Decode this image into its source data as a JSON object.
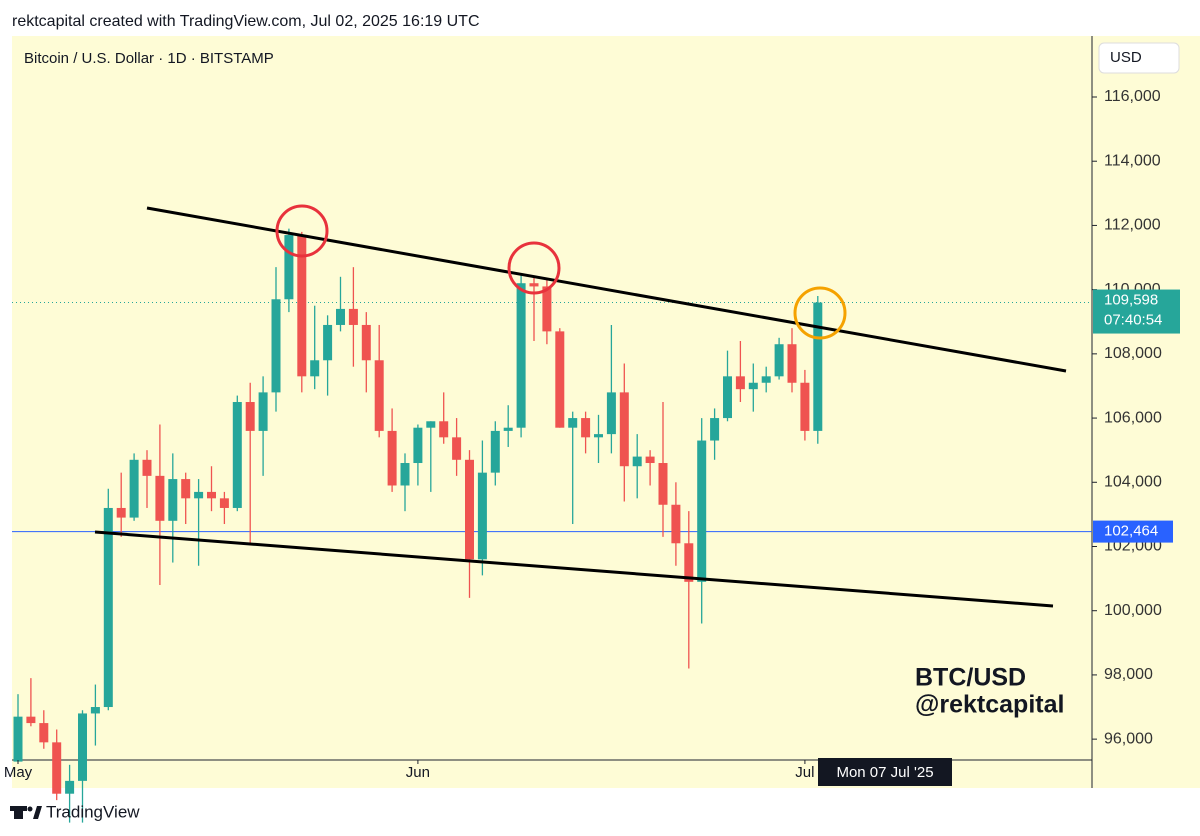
{
  "header": "rektcapital created with TradingView.com, Jul 02, 2025 16:19 UTC",
  "footer": "TradingView",
  "watermark": [
    "BTC/USD",
    "@rektcapital"
  ],
  "crosshair_label": "Mon 07 Jul '25",
  "chart_data": {
    "type": "candlestick",
    "title": "Bitcoin / U.S. Dollar · 1D · BITSTAMP",
    "currency": "USD",
    "up_color": "#26a69a",
    "down_color": "#ef5350",
    "x": [
      "2025-05-01",
      "2025-05-02",
      "2025-05-03",
      "2025-05-04",
      "2025-05-05",
      "2025-05-06",
      "2025-05-07",
      "2025-05-08",
      "2025-05-09",
      "2025-05-10",
      "2025-05-11",
      "2025-05-12",
      "2025-05-13",
      "2025-05-14",
      "2025-05-15",
      "2025-05-16",
      "2025-05-17",
      "2025-05-18",
      "2025-05-19",
      "2025-05-20",
      "2025-05-21",
      "2025-05-22",
      "2025-05-23",
      "2025-05-24",
      "2025-05-25",
      "2025-05-26",
      "2025-05-27",
      "2025-05-28",
      "2025-05-29",
      "2025-05-30",
      "2025-05-31",
      "2025-06-01",
      "2025-06-02",
      "2025-06-03",
      "2025-06-04",
      "2025-06-05",
      "2025-06-06",
      "2025-06-07",
      "2025-06-08",
      "2025-06-09",
      "2025-06-10",
      "2025-06-11",
      "2025-06-12",
      "2025-06-13",
      "2025-06-14",
      "2025-06-15",
      "2025-06-16",
      "2025-06-17",
      "2025-06-18",
      "2025-06-19",
      "2025-06-20",
      "2025-06-21",
      "2025-06-22",
      "2025-06-23",
      "2025-06-24",
      "2025-06-25",
      "2025-06-26",
      "2025-06-27",
      "2025-06-28",
      "2025-06-29",
      "2025-06-30",
      "2025-07-01",
      "2025-07-02"
    ],
    "open": [
      95300,
      96700,
      96500,
      95900,
      94300,
      94700,
      96800,
      97000,
      103200,
      102900,
      104700,
      104200,
      102800,
      104100,
      103500,
      103700,
      103500,
      103200,
      106500,
      105600,
      106800,
      109700,
      111700,
      107300,
      107800,
      108900,
      109400,
      108900,
      107800,
      105600,
      103900,
      104600,
      105700,
      105900,
      105400,
      104700,
      101600,
      104300,
      105600,
      105700,
      110200,
      110100,
      108700,
      105700,
      106000,
      105400,
      105500,
      106800,
      104500,
      104800,
      104600,
      103300,
      102100,
      100900,
      105300,
      106000,
      107300,
      106900,
      107100,
      107300,
      108300,
      107100,
      105600
    ],
    "high": [
      97400,
      97900,
      96900,
      96300,
      95200,
      96900,
      97700,
      103800,
      104300,
      104900,
      105000,
      105800,
      104900,
      104300,
      104100,
      104500,
      103700,
      106700,
      107100,
      107300,
      110700,
      111900,
      111800,
      109500,
      109200,
      110400,
      110700,
      109300,
      108900,
      106300,
      104900,
      105800,
      105900,
      106800,
      106000,
      105000,
      105300,
      105900,
      106400,
      110500,
      110400,
      110300,
      108800,
      106200,
      106200,
      106100,
      108900,
      107700,
      105500,
      105000,
      106500,
      104000,
      103100,
      106000,
      106300,
      108100,
      108400,
      107700,
      107600,
      108500,
      108800,
      107500,
      109800
    ],
    "low": [
      95300,
      96400,
      95700,
      94100,
      93400,
      93400,
      95800,
      96900,
      102300,
      102800,
      103200,
      100800,
      101500,
      102700,
      101400,
      103100,
      102700,
      103100,
      102100,
      104200,
      106200,
      109300,
      106800,
      106900,
      106700,
      108700,
      107600,
      106800,
      105400,
      103700,
      103100,
      103900,
      103700,
      105200,
      104200,
      100400,
      101100,
      103900,
      105100,
      105400,
      108400,
      108300,
      105700,
      102700,
      104900,
      104600,
      104900,
      103400,
      103500,
      103900,
      102300,
      101400,
      98200,
      99600,
      104700,
      105900,
      106500,
      106200,
      106800,
      107200,
      106800,
      105300,
      105200
    ],
    "close": [
      96700,
      96500,
      95900,
      94300,
      94700,
      96800,
      97000,
      103200,
      102900,
      104700,
      104200,
      102800,
      104100,
      103500,
      103700,
      103500,
      103200,
      106500,
      105600,
      106800,
      109700,
      111700,
      107300,
      107800,
      108900,
      109400,
      108900,
      107800,
      105600,
      103900,
      104600,
      105700,
      105900,
      105400,
      104700,
      101600,
      104300,
      105600,
      105700,
      110200,
      110100,
      108700,
      105700,
      106000,
      105400,
      105500,
      106800,
      104500,
      104800,
      104600,
      103300,
      102100,
      100900,
      105300,
      106000,
      107300,
      106900,
      107100,
      107300,
      108300,
      107100,
      105600,
      109598
    ],
    "xticks": [
      {
        "value": "2025-05-01",
        "label": "May"
      },
      {
        "value": "2025-06-01",
        "label": "Jun"
      },
      {
        "value": "2025-07-01",
        "label": "Jul"
      }
    ],
    "ylim": [
      95350,
      117900
    ],
    "yticks": [
      {
        "value": 96000,
        "label": "96,000"
      },
      {
        "value": 98000,
        "label": "98,000"
      },
      {
        "value": 100000,
        "label": "100,000"
      },
      {
        "value": 102000,
        "label": "102,000"
      },
      {
        "value": 104000,
        "label": "104,000"
      },
      {
        "value": 106000,
        "label": "106,000"
      },
      {
        "value": 108000,
        "label": "108,000"
      },
      {
        "value": 110000,
        "label": "110,000"
      },
      {
        "value": 112000,
        "label": "112,000"
      },
      {
        "value": 114000,
        "label": "114,000"
      },
      {
        "value": 116000,
        "label": "116,000"
      }
    ],
    "last_price": {
      "value": 109598,
      "label": "109,598",
      "countdown": "07:40:54",
      "color": "#26a69a"
    },
    "hline": {
      "value": 102464,
      "label": "102,464",
      "color": "#2962ff"
    }
  }
}
